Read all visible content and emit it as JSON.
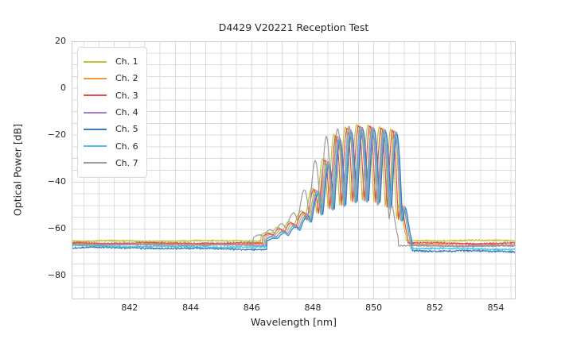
{
  "figure_title": "D4429 V20221 Reception Test",
  "chart_data": {
    "type": "line",
    "title": "D4429 V20221 Reception Test",
    "xlabel": "Wavelength [nm]",
    "ylabel": "Optical Power [dB]",
    "xlim": [
      840.1,
      854.65
    ],
    "ylim": [
      -90,
      20
    ],
    "x_ticks": [
      842,
      844,
      846,
      848,
      850,
      852,
      854
    ],
    "y_ticks": [
      20,
      0,
      -20,
      -40,
      -60,
      -80
    ],
    "minor_grid_x_step_nm": 0.5,
    "minor_grid_y_step_db": 5,
    "grid_on": true,
    "grid_color": "#dcdcdc",
    "frame_color": "#cccccc",
    "legend_position": "upper left",
    "signal_model": {
      "description": "Each channel: flat noise floor plus a modulated spectral comb between ~846.9 and ~851.1 nm; peaks spaced ~0.375 nm rising to about -16 dB with notches to ~-50 dB, sharp cutoff near 851 nm.",
      "comb_period_nm": 0.375,
      "comb_phase_center_nm": 849.54,
      "peak_sharpness": 0.55,
      "envelope_top_db": [
        [
          846.4,
          -66.0
        ],
        [
          846.92,
          -61.5
        ],
        [
          847.29,
          -58.5
        ],
        [
          847.67,
          -54.0
        ],
        [
          848.04,
          -44.0
        ],
        [
          848.42,
          -31.0
        ],
        [
          848.79,
          -20.5
        ],
        [
          849.17,
          -17.3
        ],
        [
          849.54,
          -16.2
        ],
        [
          849.92,
          -16.4
        ],
        [
          850.29,
          -17.2
        ],
        [
          850.67,
          -18.2
        ],
        [
          850.78,
          -22.0
        ],
        [
          850.9,
          -40.0
        ],
        [
          851.02,
          -55.0
        ],
        [
          851.15,
          -66.0
        ]
      ],
      "envelope_bottom_db": [
        [
          846.4,
          -67.0
        ],
        [
          847.3,
          -62.5
        ],
        [
          847.9,
          -56.5
        ],
        [
          848.42,
          -52.5
        ],
        [
          848.79,
          -51.5
        ],
        [
          849.17,
          -49.5
        ],
        [
          849.54,
          -48.5
        ],
        [
          849.92,
          -48.8
        ],
        [
          850.29,
          -50.0
        ],
        [
          850.67,
          -53.0
        ],
        [
          850.9,
          -58.0
        ],
        [
          851.05,
          -64.0
        ],
        [
          851.2,
          -67.0
        ]
      ]
    },
    "series": [
      {
        "name": "Ch. 1",
        "color": "#bfc13b",
        "shift_nm": -0.1,
        "floor_left_db": -65.2,
        "floor_right_db": -64.9,
        "peak_gain_db": 0.8,
        "noise_db": 0.45
      },
      {
        "name": "Ch. 2",
        "color": "#f8973a",
        "shift_nm": 0.02,
        "floor_left_db": -66.3,
        "floor_right_db": -66.6,
        "peak_gain_db": 0.0,
        "noise_db": 0.4
      },
      {
        "name": "Ch. 3",
        "color": "#dc4f4f",
        "shift_nm": -0.04,
        "floor_left_db": -66.0,
        "floor_right_db": -66.1,
        "peak_gain_db": 0.3,
        "noise_db": 0.4
      },
      {
        "name": "Ch. 4",
        "color": "#a77fc9",
        "shift_nm": 0.08,
        "floor_left_db": -66.6,
        "floor_right_db": -67.2,
        "peak_gain_db": -0.5,
        "noise_db": 0.4
      },
      {
        "name": "Ch. 5",
        "color": "#3b7db8",
        "shift_nm": 0.1,
        "floor_left_db": -67.9,
        "floor_right_db": -69.6,
        "peak_gain_db": -1.4,
        "noise_db": 0.5
      },
      {
        "name": "Ch. 6",
        "color": "#4cc3de",
        "shift_nm": 0.05,
        "floor_left_db": -67.2,
        "floor_right_db": -68.6,
        "peak_gain_db": -1.1,
        "noise_db": 0.5
      },
      {
        "name": "Ch. 7",
        "color": "#9b9b9b",
        "shift_nm": -0.35,
        "floor_left_db": -66.6,
        "floor_right_db": -67.4,
        "peak_gain_db": 0.0,
        "noise_db": 0.4
      }
    ]
  }
}
